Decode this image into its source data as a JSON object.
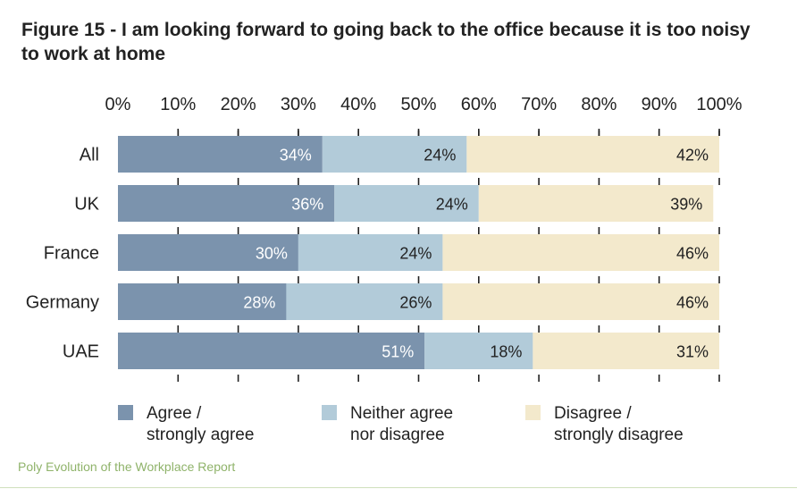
{
  "chart_data": {
    "type": "bar",
    "orientation": "horizontal",
    "stacked": true,
    "title": "Figure 15 - I am looking forward to going back to the office because it is too noisy to work at home",
    "xlim": [
      0,
      100
    ],
    "x_ticks": [
      "0%",
      "10%",
      "20%",
      "30%",
      "40%",
      "50%",
      "60%",
      "70%",
      "80%",
      "90%",
      "100%"
    ],
    "categories": [
      "All",
      "UK",
      "France",
      "Germany",
      "UAE"
    ],
    "series": [
      {
        "name": "Agree / strongly agree",
        "name_lines": [
          "Agree /",
          "strongly agree"
        ],
        "color": "#7b93ad",
        "values": [
          34,
          36,
          30,
          28,
          51
        ],
        "labels": [
          "34%",
          "36%",
          "30%",
          "28%",
          "51%"
        ]
      },
      {
        "name": "Neither agree nor disagree",
        "name_lines": [
          "Neither agree",
          "nor disagree"
        ],
        "color": "#b2cbd9",
        "values": [
          24,
          24,
          24,
          26,
          18
        ],
        "labels": [
          "24%",
          "24%",
          "24%",
          "26%",
          "18%"
        ]
      },
      {
        "name": "Disagree / strongly disagree",
        "name_lines": [
          "Disagree /",
          "strongly disagree"
        ],
        "color": "#f3e9cc",
        "values": [
          42,
          39,
          46,
          46,
          31
        ],
        "labels": [
          "42%",
          "39%",
          "46%",
          "46%",
          "31%"
        ]
      }
    ],
    "legend_position": "bottom",
    "gridlines": "tick marks"
  },
  "source": "Poly Evolution of the Workplace Report"
}
